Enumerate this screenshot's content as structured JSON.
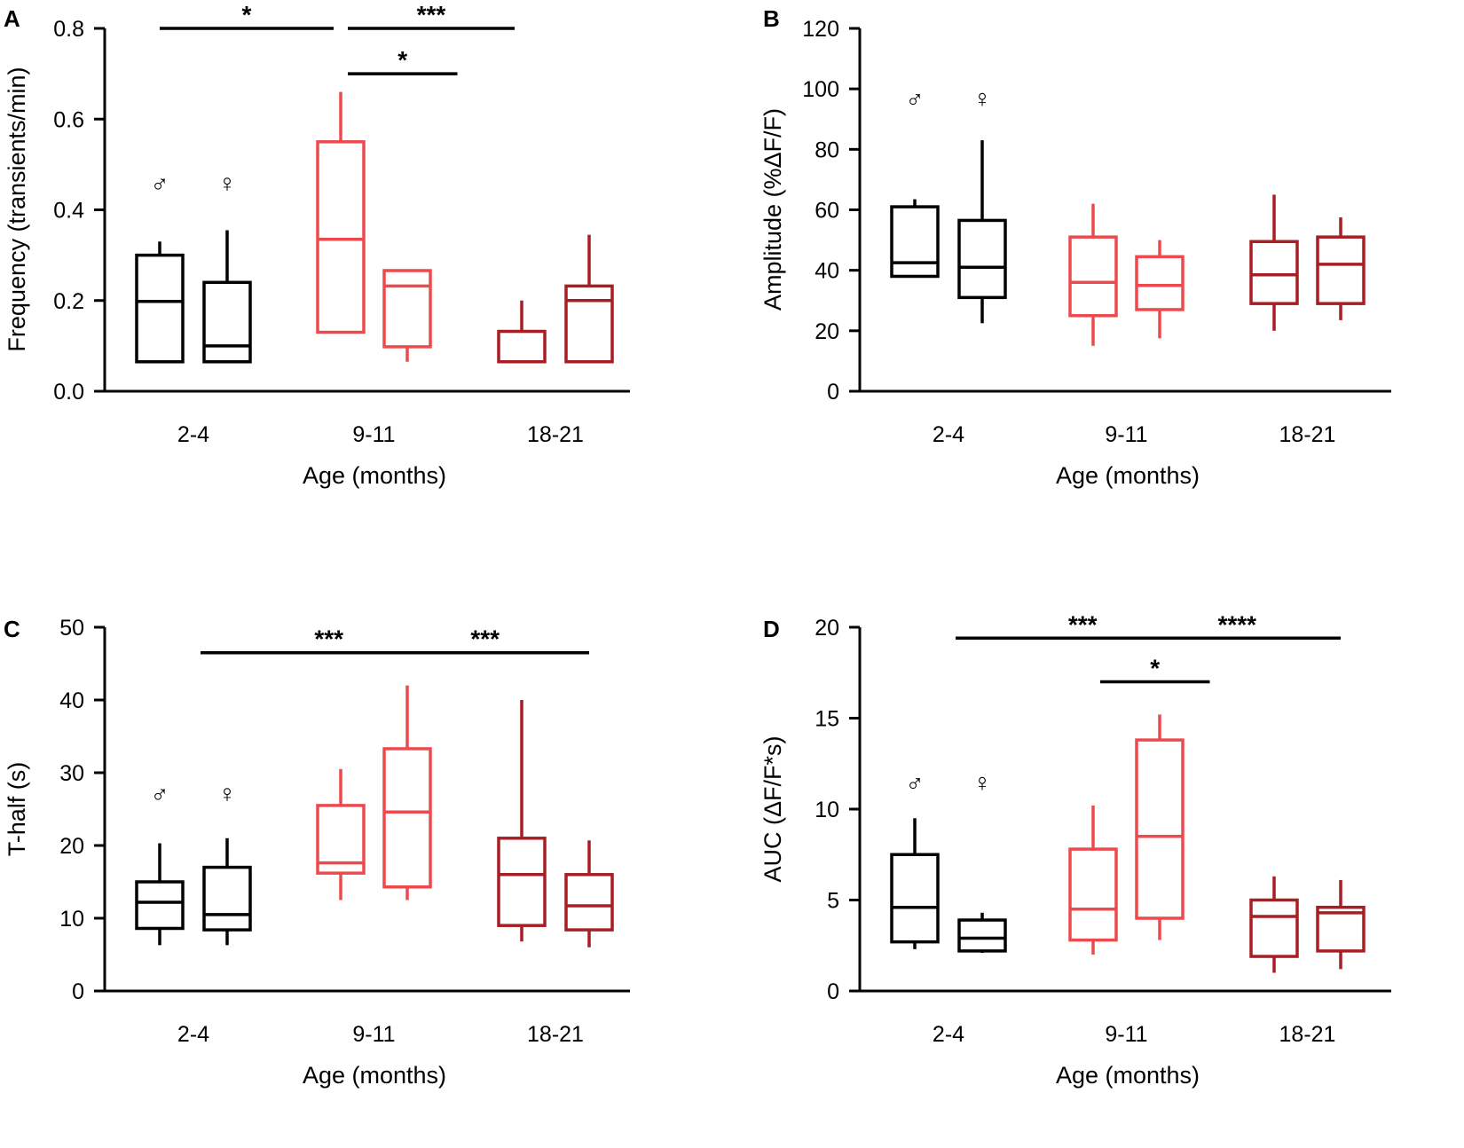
{
  "colors": {
    "young": "#000000",
    "middle": "#ee4a4e",
    "old": "#a71e24"
  },
  "sex_symbols": {
    "male": "♂",
    "female": "♀"
  },
  "chart_data": [
    {
      "panel": "A",
      "type": "box",
      "xlabel": "Age (months)",
      "ylabel": "Frequency (transients/min)",
      "ylim": [
        0,
        0.8
      ],
      "yticks": [
        0.0,
        0.2,
        0.4,
        0.6,
        0.8
      ],
      "ytick_labels": [
        "0.0",
        "0.2",
        "0.4",
        "0.6",
        "0.8"
      ],
      "categories": [
        "2-4",
        "9-11",
        "18-21"
      ],
      "boxes": [
        {
          "group": "2-4",
          "sex": "male",
          "min": 0.065,
          "q1": 0.065,
          "median": 0.198,
          "q3": 0.3,
          "max": 0.33
        },
        {
          "group": "2-4",
          "sex": "female",
          "min": 0.065,
          "q1": 0.065,
          "median": 0.1,
          "q3": 0.24,
          "max": 0.355
        },
        {
          "group": "9-11",
          "sex": "male",
          "min": 0.13,
          "q1": 0.13,
          "median": 0.335,
          "q3": 0.55,
          "max": 0.66
        },
        {
          "group": "9-11",
          "sex": "female",
          "min": 0.065,
          "q1": 0.098,
          "median": 0.232,
          "q3": 0.266,
          "max": 0.266
        },
        {
          "group": "18-21",
          "sex": "male",
          "min": 0.065,
          "q1": 0.065,
          "median": 0.065,
          "q3": 0.132,
          "max": 0.2
        },
        {
          "group": "18-21",
          "sex": "female",
          "min": 0.065,
          "q1": 0.065,
          "median": 0.2,
          "q3": 0.232,
          "max": 0.345
        }
      ],
      "significance": [
        {
          "label": "*",
          "from": 0,
          "to": 2,
          "y": 0.8
        },
        {
          "label": "***",
          "from": 2,
          "to": 4,
          "y": 0.8
        },
        {
          "label": "*",
          "from": 2,
          "to": 3,
          "y": 0.7
        }
      ],
      "sex_labels_y": 0.44
    },
    {
      "panel": "B",
      "type": "box",
      "xlabel": "Age (months)",
      "ylabel": "Amplitude (%ΔF/F)",
      "ylim": [
        0,
        120
      ],
      "yticks": [
        0,
        20,
        40,
        60,
        80,
        100,
        120
      ],
      "ytick_labels": [
        "0",
        "20",
        "40",
        "60",
        "80",
        "100",
        "120"
      ],
      "categories": [
        "2-4",
        "9-11",
        "18-21"
      ],
      "boxes": [
        {
          "group": "2-4",
          "sex": "male",
          "min": 38,
          "q1": 38,
          "median": 42.5,
          "q3": 61,
          "max": 63.5
        },
        {
          "group": "2-4",
          "sex": "female",
          "min": 22.5,
          "q1": 31,
          "median": 41,
          "q3": 56.5,
          "max": 83
        },
        {
          "group": "9-11",
          "sex": "male",
          "min": 15,
          "q1": 25,
          "median": 36,
          "q3": 51,
          "max": 62
        },
        {
          "group": "9-11",
          "sex": "female",
          "min": 17.5,
          "q1": 27,
          "median": 35,
          "q3": 44.5,
          "max": 50
        },
        {
          "group": "18-21",
          "sex": "male",
          "min": 20,
          "q1": 29,
          "median": 38.5,
          "q3": 49.5,
          "max": 65
        },
        {
          "group": "18-21",
          "sex": "female",
          "min": 23.5,
          "q1": 29,
          "median": 42,
          "q3": 51,
          "max": 57.5
        }
      ],
      "significance": [],
      "sex_labels_y": 94
    },
    {
      "panel": "C",
      "type": "box",
      "xlabel": "Age (months)",
      "ylabel": "T-half (s)",
      "ylim": [
        0,
        50
      ],
      "yticks": [
        0,
        10,
        20,
        30,
        40,
        50
      ],
      "ytick_labels": [
        "0",
        "10",
        "20",
        "30",
        "40",
        "50"
      ],
      "categories": [
        "2-4",
        "9-11",
        "18-21"
      ],
      "boxes": [
        {
          "group": "2-4",
          "sex": "male",
          "min": 6.3,
          "q1": 8.6,
          "median": 12.2,
          "q3": 15,
          "max": 20.3
        },
        {
          "group": "2-4",
          "sex": "female",
          "min": 6.3,
          "q1": 8.4,
          "median": 10.5,
          "q3": 17,
          "max": 21
        },
        {
          "group": "9-11",
          "sex": "male",
          "min": 12.5,
          "q1": 16.2,
          "median": 17.6,
          "q3": 25.5,
          "max": 30.5
        },
        {
          "group": "9-11",
          "sex": "female",
          "min": 12.5,
          "q1": 14.3,
          "median": 24.6,
          "q3": 33.3,
          "max": 42
        },
        {
          "group": "18-21",
          "sex": "male",
          "min": 6.8,
          "q1": 9,
          "median": 16,
          "q3": 21,
          "max": 40
        },
        {
          "group": "18-21",
          "sex": "female",
          "min": 6,
          "q1": 8.4,
          "median": 11.7,
          "q3": 16,
          "max": 20.7
        }
      ],
      "significance": [
        {
          "label": "***",
          "from": 1,
          "to": 3,
          "y": 46.5
        },
        {
          "label": "***",
          "from": 3,
          "to": 5,
          "y": 46.5
        }
      ],
      "sex_labels_y": 26
    },
    {
      "panel": "D",
      "type": "box",
      "xlabel": "Age (months)",
      "ylabel": "AUC (ΔF/F*s)",
      "ylim": [
        0,
        20
      ],
      "yticks": [
        0,
        5,
        10,
        15,
        20
      ],
      "ytick_labels": [
        "0",
        "5",
        "10",
        "15",
        "20"
      ],
      "categories": [
        "2-4",
        "9-11",
        "18-21"
      ],
      "boxes": [
        {
          "group": "2-4",
          "sex": "male",
          "min": 2.3,
          "q1": 2.7,
          "median": 4.6,
          "q3": 7.5,
          "max": 9.5
        },
        {
          "group": "2-4",
          "sex": "female",
          "min": 2.1,
          "q1": 2.2,
          "median": 2.9,
          "q3": 3.9,
          "max": 4.3
        },
        {
          "group": "9-11",
          "sex": "male",
          "min": 2,
          "q1": 2.8,
          "median": 4.5,
          "q3": 7.8,
          "max": 10.2
        },
        {
          "group": "9-11",
          "sex": "female",
          "min": 2.8,
          "q1": 4,
          "median": 8.5,
          "q3": 13.8,
          "max": 15.2
        },
        {
          "group": "18-21",
          "sex": "male",
          "min": 1,
          "q1": 1.9,
          "median": 4.1,
          "q3": 5,
          "max": 6.3
        },
        {
          "group": "18-21",
          "sex": "female",
          "min": 1.2,
          "q1": 2.2,
          "median": 4.3,
          "q3": 4.6,
          "max": 6.1
        }
      ],
      "significance": [
        {
          "label": "***",
          "from": 1,
          "to": 3,
          "y": 19.4
        },
        {
          "label": "****",
          "from": 3,
          "to": 5,
          "y": 19.4
        },
        {
          "label": "*",
          "from": 2,
          "to": 3,
          "y": 17
        }
      ],
      "sex_labels_y": 11
    }
  ]
}
